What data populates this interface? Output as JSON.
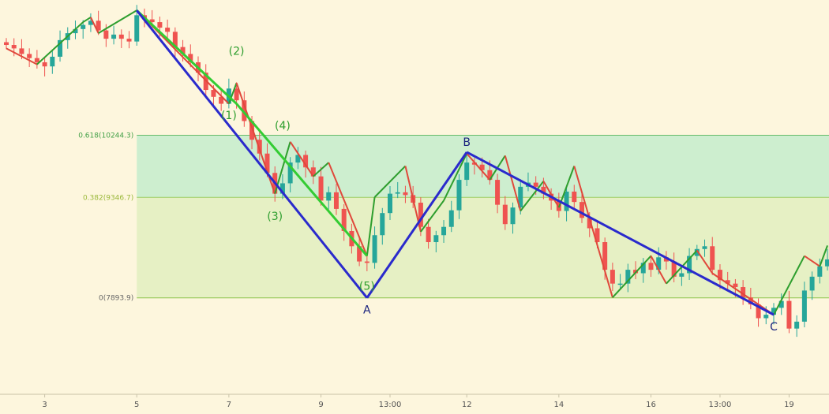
{
  "chart_data": {
    "type": "candlestick",
    "title": "",
    "colors": {
      "background": "#fdf6dd",
      "up_candle": "#26a69a",
      "down_candle": "#ef5350",
      "swing_up": "#2e9e2e",
      "swing_down": "#e0483b",
      "impulse_line": "#33cc33",
      "abc_line": "#2a2acc",
      "zone_upper": "#cdeecf",
      "zone_lower": "#e6f0c4",
      "level_line": "#66bb6a",
      "level_0618_text": "#43a047",
      "level_0382_text": "#9ab83a",
      "level_0_text": "#666666",
      "wave_label": "#2e9e2e",
      "abc_label": "#1a237e"
    },
    "x_axis": {
      "ticks": [
        "3",
        "5",
        "7",
        "9",
        "13:00",
        "12",
        "14",
        "16",
        "13:00",
        "19"
      ],
      "tick_bar_index": [
        5,
        17,
        29,
        41,
        50,
        60,
        72,
        84,
        93,
        102
      ]
    },
    "y_axis": {
      "range": [
        6500,
        12200
      ]
    },
    "fib_levels": [
      {
        "label": "0.618(10244.3)",
        "value": 10244.3
      },
      {
        "label": "0.382(9346.7)",
        "value": 9346.7
      },
      {
        "label": "0(7893.9)",
        "value": 7893.9
      }
    ],
    "candles_close": [
      11550,
      11500,
      11420,
      11360,
      11300,
      11240,
      11380,
      11620,
      11720,
      11780,
      11840,
      11900,
      11760,
      11640,
      11700,
      11640,
      11600,
      11980,
      11920,
      11880,
      11800,
      11740,
      11520,
      11420,
      11300,
      11150,
      10900,
      10800,
      10700,
      10920,
      10750,
      10450,
      10180,
      9980,
      9700,
      9400,
      9550,
      9850,
      9960,
      9780,
      9650,
      9300,
      9420,
      9180,
      8860,
      8640,
      8420,
      8400,
      8800,
      9120,
      9400,
      9420,
      9380,
      9270,
      8920,
      8700,
      8800,
      8920,
      9160,
      9600,
      9850,
      9820,
      9740,
      9600,
      9240,
      8960,
      9200,
      9500,
      9560,
      9500,
      9400,
      9300,
      9150,
      9430,
      9280,
      9050,
      8900,
      8700,
      8300,
      8100,
      8100,
      8300,
      8250,
      8400,
      8300,
      8480,
      8420,
      8200,
      8250,
      8500,
      8600,
      8640,
      8300,
      8150,
      8100,
      8050,
      7900,
      7800,
      7600,
      7650,
      7750,
      7850,
      7450,
      7550,
      8000,
      8200,
      8350,
      8450
    ],
    "swing_points": [
      [
        0,
        11500
      ],
      [
        4,
        11270
      ],
      [
        10,
        11880
      ],
      [
        11,
        11950
      ],
      [
        12,
        11720
      ],
      [
        17,
        12050
      ],
      [
        29,
        10700
      ],
      [
        30,
        11000
      ],
      [
        35,
        9400
      ],
      [
        37,
        10150
      ],
      [
        40,
        9650
      ],
      [
        42,
        9850
      ],
      [
        47,
        8500
      ],
      [
        48,
        9350
      ],
      [
        52,
        9800
      ],
      [
        54,
        8850
      ],
      [
        57,
        9300
      ],
      [
        60,
        9980
      ],
      [
        63,
        9600
      ],
      [
        65,
        9950
      ],
      [
        67,
        9150
      ],
      [
        70,
        9580
      ],
      [
        72,
        9200
      ],
      [
        74,
        9800
      ],
      [
        79,
        7900
      ],
      [
        84,
        8500
      ],
      [
        86,
        8100
      ],
      [
        90,
        8580
      ],
      [
        92,
        8250
      ],
      [
        100,
        7650
      ],
      [
        104,
        8500
      ],
      [
        106,
        8350
      ],
      [
        107,
        8650
      ]
    ],
    "impulse_line": [
      [
        17,
        12050
      ],
      [
        30,
        10700
      ],
      [
        47,
        8500
      ]
    ],
    "abc_points": [
      {
        "label": "",
        "bar": 17,
        "value": 12050
      },
      {
        "label": "A",
        "bar": 47,
        "value": 7893.9
      },
      {
        "label": "B",
        "bar": 60,
        "value": 10000
      },
      {
        "label": "C",
        "bar": 100,
        "value": 7650
      }
    ],
    "wave_labels": [
      {
        "label": "(1)",
        "bar": 29,
        "value": 10480
      },
      {
        "label": "(2)",
        "bar": 30,
        "value": 11410
      },
      {
        "label": "(3)",
        "bar": 35,
        "value": 9020
      },
      {
        "label": "(4)",
        "bar": 36,
        "value": 10330
      },
      {
        "label": "(5)",
        "bar": 47,
        "value": 8010
      }
    ]
  }
}
